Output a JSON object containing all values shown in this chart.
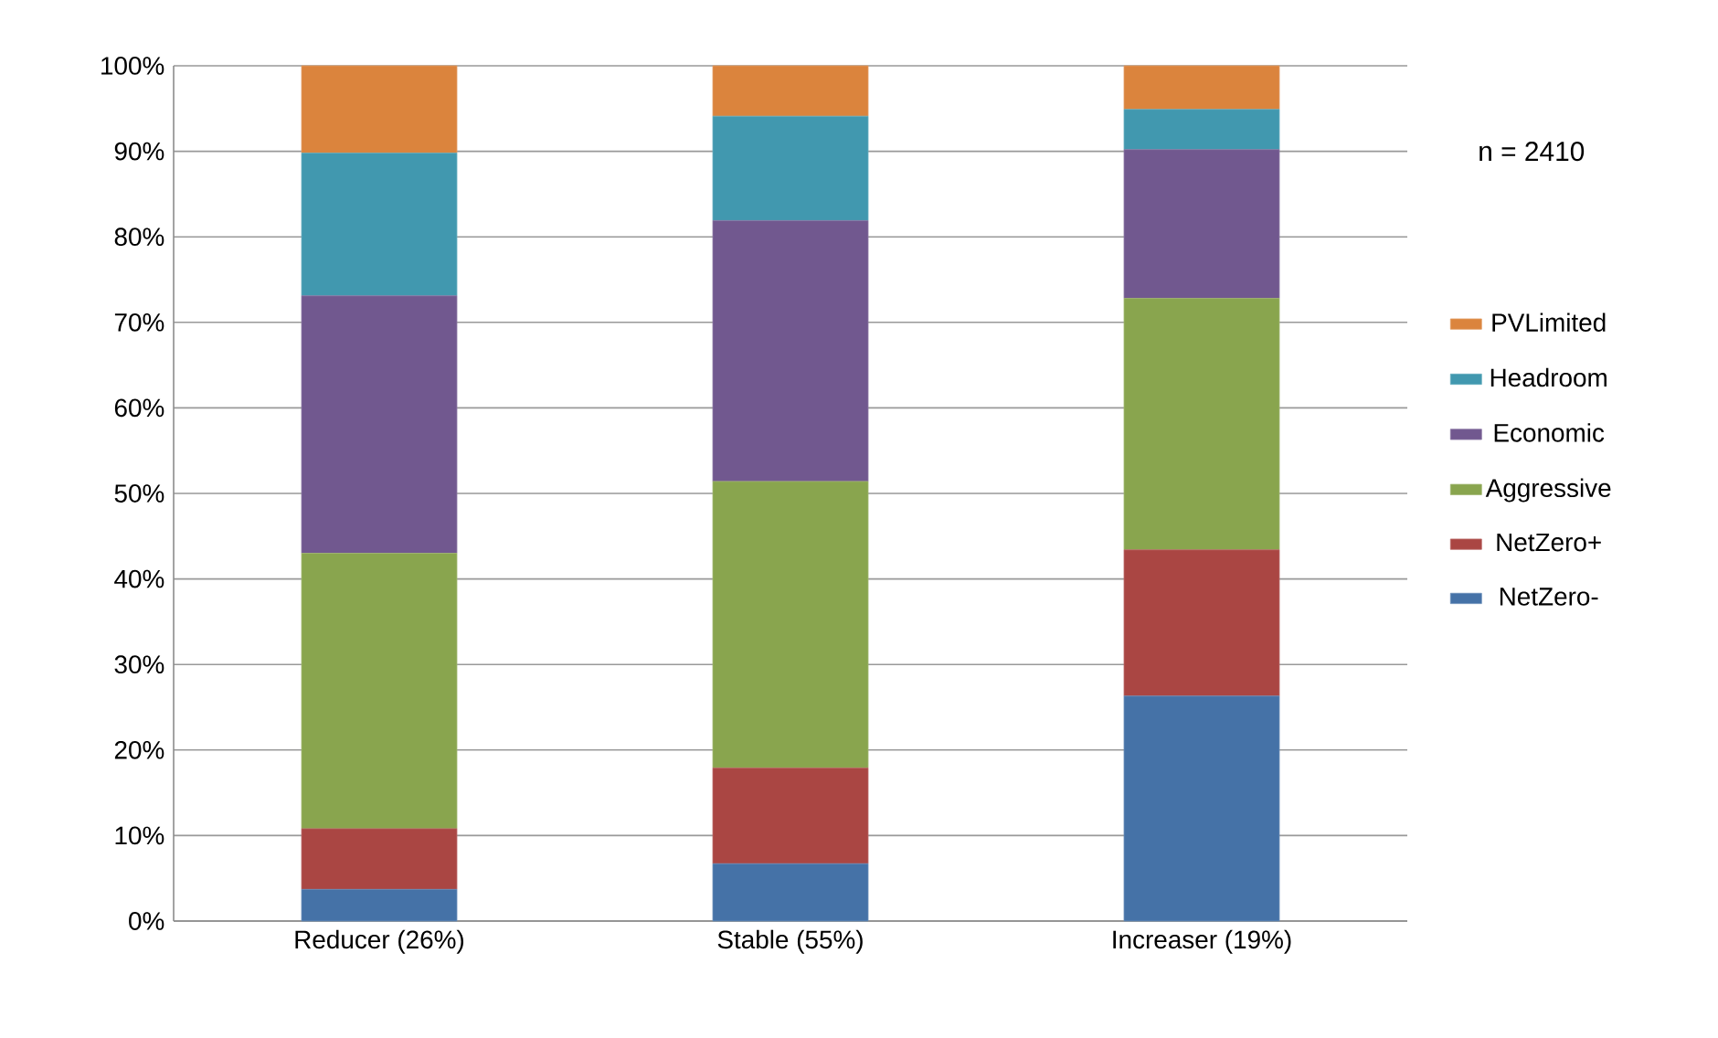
{
  "chart_data": {
    "type": "bar",
    "stacked": true,
    "categories": [
      "Reducer (26%)",
      "Stable (55%)",
      "Increaser (19%)"
    ],
    "series": [
      {
        "name": "NetZero-",
        "color": "#4572a7",
        "values": [
          3.7,
          6.7,
          26.3
        ]
      },
      {
        "name": "NetZero+",
        "color": "#aa4643",
        "values": [
          7.1,
          11.2,
          17.1
        ]
      },
      {
        "name": "Aggressive",
        "color": "#89a54e",
        "values": [
          32.2,
          33.5,
          29.4
        ]
      },
      {
        "name": "Economic",
        "color": "#71588f",
        "values": [
          30.1,
          30.5,
          17.4
        ]
      },
      {
        "name": "Headroom",
        "color": "#4198af",
        "values": [
          16.7,
          12.2,
          4.7
        ]
      },
      {
        "name": "PVLimited",
        "color": "#db843d",
        "values": [
          10.2,
          5.9,
          5.1
        ]
      }
    ],
    "ylim": [
      0,
      100
    ],
    "yticks": [
      {
        "value": 0,
        "label": "0%"
      },
      {
        "value": 10,
        "label": "10%"
      },
      {
        "value": 20,
        "label": "20%"
      },
      {
        "value": 30,
        "label": "30%"
      },
      {
        "value": 40,
        "label": "40%"
      },
      {
        "value": 50,
        "label": "50%"
      },
      {
        "value": 60,
        "label": "60%"
      },
      {
        "value": 70,
        "label": "70%"
      },
      {
        "value": 80,
        "label": "80%"
      },
      {
        "value": 90,
        "label": "90%"
      },
      {
        "value": 100,
        "label": "100%"
      }
    ],
    "grid": "y",
    "legend": "right",
    "annotations": [
      "n = 2410"
    ]
  }
}
